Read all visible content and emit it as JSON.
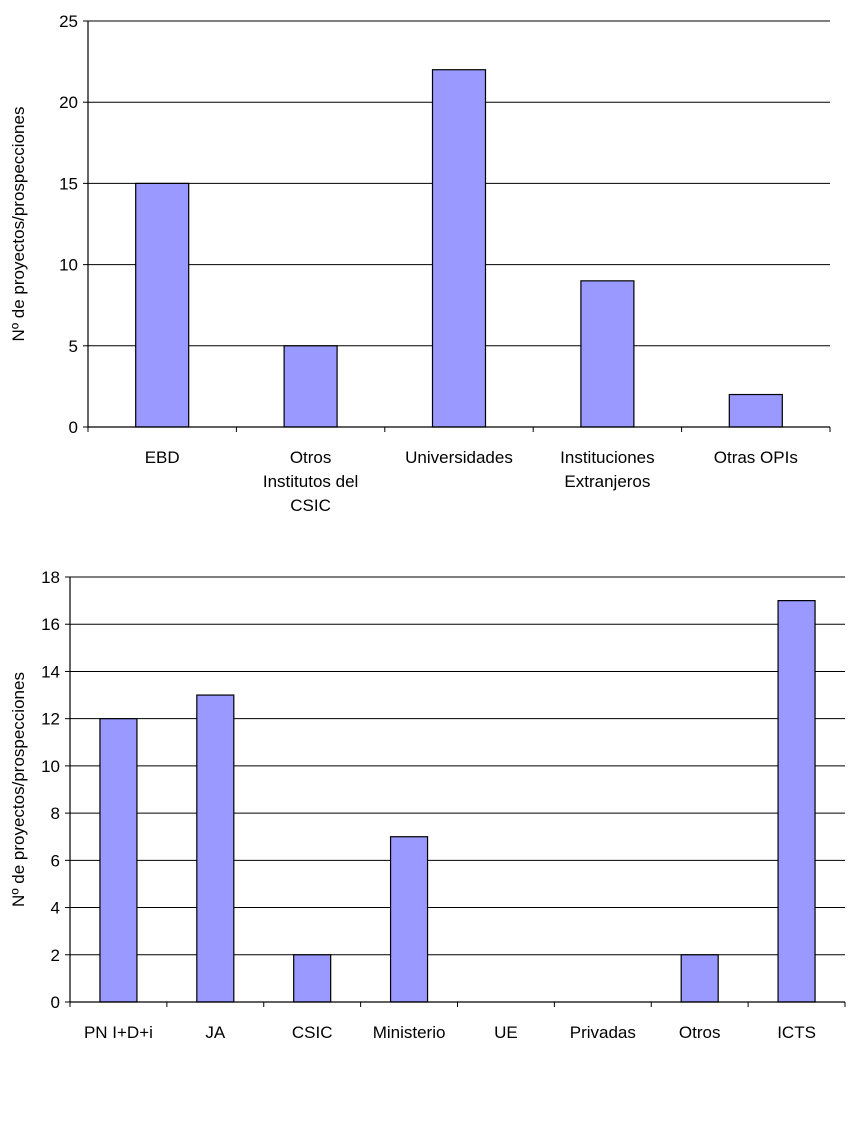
{
  "chart_data": [
    {
      "type": "bar",
      "title": "",
      "xlabel": "",
      "ylabel": "Nº de proyectos/prospecciones",
      "ylim": [
        0,
        25
      ],
      "yticks": [
        0,
        5,
        10,
        15,
        20,
        25
      ],
      "grid": true,
      "legend": "none",
      "bar_color": "#9999ff",
      "categories": [
        [
          "EBD"
        ],
        [
          "Otros",
          "Institutos del",
          "CSIC"
        ],
        [
          "Universidades"
        ],
        [
          "Instituciones",
          "Extranjeros"
        ],
        [
          "Otras OPIs"
        ]
      ],
      "values": [
        15,
        5,
        22,
        9,
        2
      ]
    },
    {
      "type": "bar",
      "title": "",
      "xlabel": "",
      "ylabel": "Nº de proyectos/prospecciones",
      "ylim": [
        0,
        18
      ],
      "yticks": [
        0,
        2,
        4,
        6,
        8,
        10,
        12,
        14,
        16,
        18
      ],
      "grid": true,
      "legend": "none",
      "bar_color": "#9999ff",
      "categories": [
        [
          "PN I+D+i"
        ],
        [
          "JA"
        ],
        [
          "CSIC"
        ],
        [
          "Ministerio"
        ],
        [
          "UE"
        ],
        [
          "Privadas"
        ],
        [
          "Otros"
        ],
        [
          "ICTS"
        ]
      ],
      "values": [
        12,
        13,
        2,
        7,
        0,
        0,
        2,
        17
      ]
    }
  ]
}
